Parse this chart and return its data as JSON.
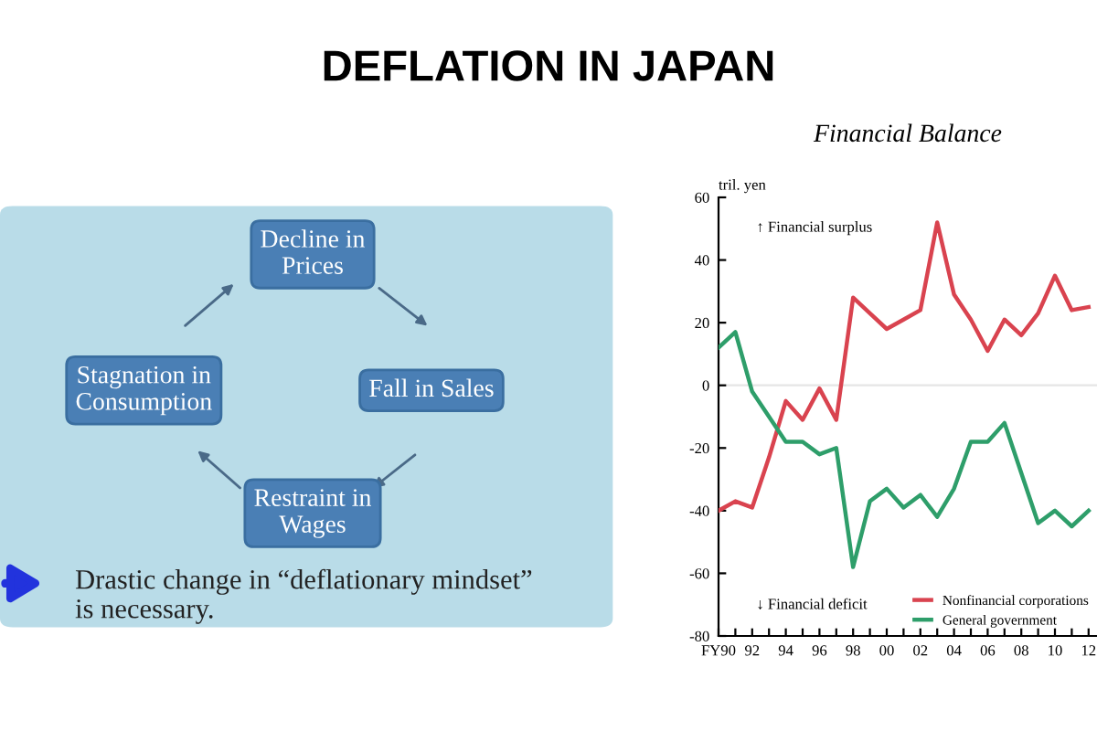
{
  "chart_data": [
    {
      "type": "other",
      "title": "DEFLATION IN JAPAN",
      "annotations": [
        "Decline in\nPrices",
        "Fall in Sales",
        "Restraint in\nWages",
        "Stagnation in\nConsumption",
        "Drastic change in “deflationary mindset”\nis necessary."
      ]
    },
    {
      "type": "line",
      "title": "Financial Balance",
      "ylabel": "tril. yen",
      "x": [
        1990,
        1991,
        1992,
        1993,
        1994,
        1995,
        1996,
        1997,
        1998,
        1999,
        2000,
        2001,
        2002,
        2003,
        2004,
        2005,
        2006,
        2007,
        2008,
        2009,
        2010,
        2011,
        2012
      ],
      "series": [
        {
          "name": "Nonfinancial corporations",
          "color": "#d9434f",
          "values": [
            -40,
            -37,
            -39,
            -23,
            -5,
            -11,
            -1,
            -11,
            28,
            23,
            18,
            21,
            24,
            52,
            29,
            21,
            11,
            21,
            16,
            23,
            35,
            24,
            25
          ]
        },
        {
          "name": "General government",
          "color": "#2e9e6a",
          "values": [
            12,
            17,
            -2,
            -10,
            -18,
            -18,
            -22,
            -20,
            -58,
            -37,
            -33,
            -39,
            -35,
            -42,
            -33,
            -18,
            -18,
            -12,
            -28,
            -44,
            -40,
            -45,
            -40
          ]
        }
      ],
      "xlim": [
        1990,
        2012.5
      ],
      "xticks": [
        {
          "value": 1990,
          "label": "FY90"
        },
        {
          "value": 1991,
          "label": null
        },
        {
          "value": 1992,
          "label": "92"
        },
        {
          "value": 1993,
          "label": null
        },
        {
          "value": 1994,
          "label": "94"
        },
        {
          "value": 1995,
          "label": null
        },
        {
          "value": 1996,
          "label": "96"
        },
        {
          "value": 1997,
          "label": null
        },
        {
          "value": 1998,
          "label": "98"
        },
        {
          "value": 1999,
          "label": null
        },
        {
          "value": 2000,
          "label": "00"
        },
        {
          "value": 2001,
          "label": null
        },
        {
          "value": 2002,
          "label": "02"
        },
        {
          "value": 2003,
          "label": null
        },
        {
          "value": 2004,
          "label": "04"
        },
        {
          "value": 2005,
          "label": null
        },
        {
          "value": 2006,
          "label": "06"
        },
        {
          "value": 2007,
          "label": null
        },
        {
          "value": 2008,
          "label": "08"
        },
        {
          "value": 2009,
          "label": null
        },
        {
          "value": 2010,
          "label": "10"
        },
        {
          "value": 2011,
          "label": null
        },
        {
          "value": 2012,
          "label": "12"
        }
      ],
      "ylim": [
        -80,
        60
      ],
      "yticks": [
        -80,
        -60,
        -40,
        -20,
        0,
        20,
        40,
        60
      ],
      "ref_lines": [
        {
          "axis": "y",
          "value": 0,
          "color": "#e6e6e6"
        }
      ],
      "annotations": [
        "↑ Financial surplus",
        "↓ Financial deficit"
      ],
      "legend": "lower right",
      "grid": false,
      "marker": "none",
      "line_style": "solid"
    }
  ]
}
